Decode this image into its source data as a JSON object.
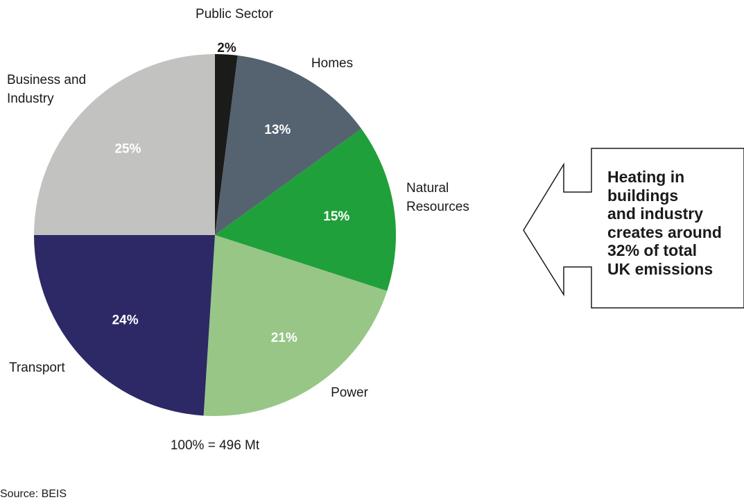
{
  "chart_data": {
    "type": "pie",
    "title": "",
    "categories": [
      "Public Sector",
      "Homes",
      "Natural Resources",
      "Power",
      "Transport",
      "Business and Industry"
    ],
    "values": [
      2,
      13,
      15,
      21,
      24,
      25
    ],
    "value_labels": [
      "2%",
      "13%",
      "15%",
      "21%",
      "24%",
      "25%"
    ],
    "colors": [
      "#1b1b19",
      "#556270",
      "#1fa03a",
      "#97c687",
      "#2c2966",
      "#c2c3c1"
    ],
    "label_colors": [
      "#1a1a1a",
      "#ffffff",
      "#ffffff",
      "#ffffff",
      "#ffffff",
      "#ffffff"
    ],
    "total_label": "100% = 496 Mt",
    "source": "Source: BEIS"
  },
  "label_lines": {
    "Public Sector": [
      "Public Sector"
    ],
    "Homes": [
      "Homes"
    ],
    "Natural Resources": [
      "Natural",
      "Resources"
    ],
    "Power": [
      "Power"
    ],
    "Transport": [
      "Transport"
    ],
    "Business and Industry": [
      "Business and",
      "Industry"
    ]
  },
  "callout": {
    "lines": [
      "Heating in",
      "buildings",
      "and industry",
      "creates around",
      "32% of total",
      "UK emissions"
    ]
  }
}
